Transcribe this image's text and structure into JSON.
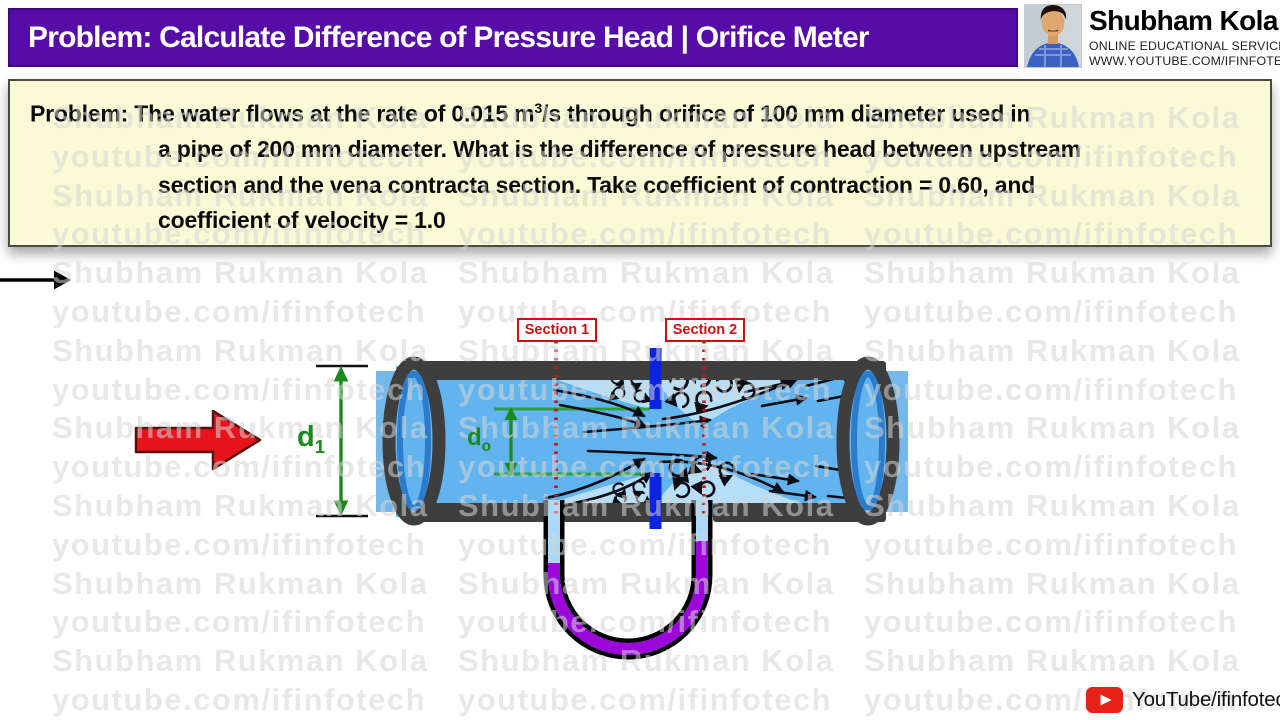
{
  "header": {
    "title": "Problem: Calculate Difference of Pressure Head | Orifice Meter"
  },
  "branding": {
    "name": "Shubham Kola",
    "tagline": "ONLINE EDUCATIONAL SERVICES",
    "website": "WWW.YOUTUBE.COM/IFINFOTECH"
  },
  "problem": {
    "label": "Problem:",
    "line1_pre_sup": " The water flows at the rate of 0.015 m",
    "sup": "3",
    "line1_post_sup": "/s  through orifice of 100 mm diameter used in",
    "line2": "a pipe of 200 mm diameter. What is the difference of pressure head between upstream",
    "line3": "section and the vena contracta section. Take coefficient of contraction = 0.60, and",
    "line4": "coefficient of velocity = 1.0"
  },
  "diagram": {
    "section1_label": "Section 1",
    "section2_label": "Section 2",
    "d1": {
      "base": "d",
      "sub": "1"
    },
    "do": {
      "base": "d",
      "sub": "o"
    }
  },
  "watermark": {
    "line1": "Shubham Rukman Kola",
    "line2": "youtube.com/ifinfotech"
  },
  "footer": {
    "channel": "YouTube/ifinfotech"
  },
  "colors": {
    "header_bg": "#560da8",
    "problem_box_bg": "#fafad6",
    "water": "#62b4ee",
    "water_light": "#b6def7",
    "orifice_plate": "#0c24df",
    "pipe_wall": "#3e3e3e",
    "manometer_fluid": "#9c08dc",
    "section_red": "#cc1111",
    "dimension_green": "#1b8a1b",
    "flow_arrow_red": "#e8141c",
    "youtube_red": "#e62117"
  }
}
